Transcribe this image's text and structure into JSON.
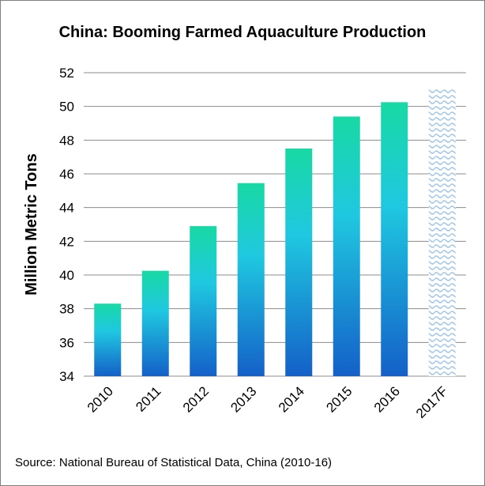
{
  "chart_data": {
    "type": "bar",
    "title": "China: Booming Farmed Aquaculture Production",
    "ylabel": "Million Metric Tons",
    "xlabel": "",
    "categories": [
      "2010",
      "2011",
      "2012",
      "2013",
      "2014",
      "2015",
      "2016",
      "2017F"
    ],
    "values": [
      38.3,
      40.25,
      42.9,
      45.45,
      47.5,
      49.4,
      50.25,
      51.05
    ],
    "forecast_categories": [
      "2017F"
    ],
    "ylim": [
      34,
      52
    ],
    "yticks": [
      34,
      36,
      38,
      40,
      42,
      44,
      46,
      48,
      50,
      52
    ],
    "grid": true,
    "legend": "none",
    "colors": {
      "bar_top": "#18d9a4",
      "bar_mid": "#1fc8e0",
      "bar_bottom": "#1460c8",
      "forecast_pattern": "#9ec6ea",
      "gridline": "#8c8c8c"
    }
  },
  "source": "Source: National Bureau of Statistical Data, China (2010-16)"
}
